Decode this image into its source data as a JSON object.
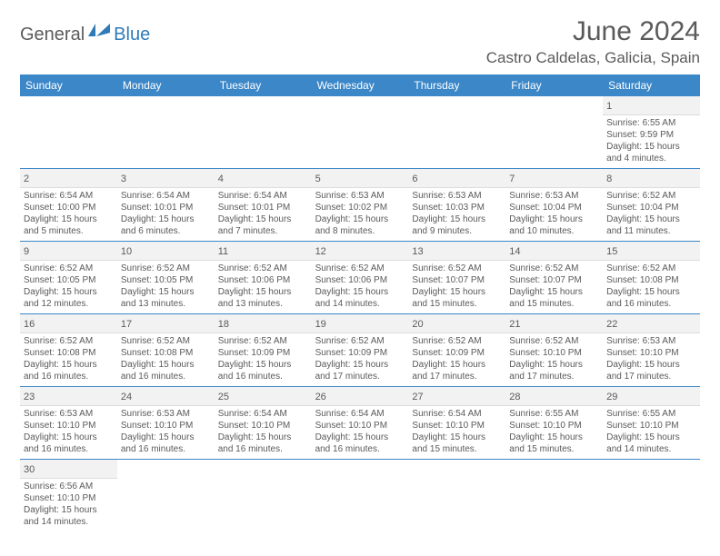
{
  "logo": {
    "part1": "General",
    "part2": "Blue"
  },
  "header": {
    "month_title": "June 2024",
    "location": "Castro Caldelas, Galicia, Spain"
  },
  "colors": {
    "header_bar": "#3b87c8",
    "header_text": "#ffffff",
    "body_text": "#5a5a5a",
    "daynum_bg": "#f2f2f2",
    "row_border": "#3b87c8",
    "logo_blue": "#2f7ab8"
  },
  "weekdays": [
    "Sunday",
    "Monday",
    "Tuesday",
    "Wednesday",
    "Thursday",
    "Friday",
    "Saturday"
  ],
  "weeks": [
    [
      null,
      null,
      null,
      null,
      null,
      null,
      {
        "n": "1",
        "sr": "6:55 AM",
        "ss": "9:59 PM",
        "dl": "15 hours and 4 minutes."
      }
    ],
    [
      {
        "n": "2",
        "sr": "6:54 AM",
        "ss": "10:00 PM",
        "dl": "15 hours and 5 minutes."
      },
      {
        "n": "3",
        "sr": "6:54 AM",
        "ss": "10:01 PM",
        "dl": "15 hours and 6 minutes."
      },
      {
        "n": "4",
        "sr": "6:54 AM",
        "ss": "10:01 PM",
        "dl": "15 hours and 7 minutes."
      },
      {
        "n": "5",
        "sr": "6:53 AM",
        "ss": "10:02 PM",
        "dl": "15 hours and 8 minutes."
      },
      {
        "n": "6",
        "sr": "6:53 AM",
        "ss": "10:03 PM",
        "dl": "15 hours and 9 minutes."
      },
      {
        "n": "7",
        "sr": "6:53 AM",
        "ss": "10:04 PM",
        "dl": "15 hours and 10 minutes."
      },
      {
        "n": "8",
        "sr": "6:52 AM",
        "ss": "10:04 PM",
        "dl": "15 hours and 11 minutes."
      }
    ],
    [
      {
        "n": "9",
        "sr": "6:52 AM",
        "ss": "10:05 PM",
        "dl": "15 hours and 12 minutes."
      },
      {
        "n": "10",
        "sr": "6:52 AM",
        "ss": "10:05 PM",
        "dl": "15 hours and 13 minutes."
      },
      {
        "n": "11",
        "sr": "6:52 AM",
        "ss": "10:06 PM",
        "dl": "15 hours and 13 minutes."
      },
      {
        "n": "12",
        "sr": "6:52 AM",
        "ss": "10:06 PM",
        "dl": "15 hours and 14 minutes."
      },
      {
        "n": "13",
        "sr": "6:52 AM",
        "ss": "10:07 PM",
        "dl": "15 hours and 15 minutes."
      },
      {
        "n": "14",
        "sr": "6:52 AM",
        "ss": "10:07 PM",
        "dl": "15 hours and 15 minutes."
      },
      {
        "n": "15",
        "sr": "6:52 AM",
        "ss": "10:08 PM",
        "dl": "15 hours and 16 minutes."
      }
    ],
    [
      {
        "n": "16",
        "sr": "6:52 AM",
        "ss": "10:08 PM",
        "dl": "15 hours and 16 minutes."
      },
      {
        "n": "17",
        "sr": "6:52 AM",
        "ss": "10:08 PM",
        "dl": "15 hours and 16 minutes."
      },
      {
        "n": "18",
        "sr": "6:52 AM",
        "ss": "10:09 PM",
        "dl": "15 hours and 16 minutes."
      },
      {
        "n": "19",
        "sr": "6:52 AM",
        "ss": "10:09 PM",
        "dl": "15 hours and 17 minutes."
      },
      {
        "n": "20",
        "sr": "6:52 AM",
        "ss": "10:09 PM",
        "dl": "15 hours and 17 minutes."
      },
      {
        "n": "21",
        "sr": "6:52 AM",
        "ss": "10:10 PM",
        "dl": "15 hours and 17 minutes."
      },
      {
        "n": "22",
        "sr": "6:53 AM",
        "ss": "10:10 PM",
        "dl": "15 hours and 17 minutes."
      }
    ],
    [
      {
        "n": "23",
        "sr": "6:53 AM",
        "ss": "10:10 PM",
        "dl": "15 hours and 16 minutes."
      },
      {
        "n": "24",
        "sr": "6:53 AM",
        "ss": "10:10 PM",
        "dl": "15 hours and 16 minutes."
      },
      {
        "n": "25",
        "sr": "6:54 AM",
        "ss": "10:10 PM",
        "dl": "15 hours and 16 minutes."
      },
      {
        "n": "26",
        "sr": "6:54 AM",
        "ss": "10:10 PM",
        "dl": "15 hours and 16 minutes."
      },
      {
        "n": "27",
        "sr": "6:54 AM",
        "ss": "10:10 PM",
        "dl": "15 hours and 15 minutes."
      },
      {
        "n": "28",
        "sr": "6:55 AM",
        "ss": "10:10 PM",
        "dl": "15 hours and 15 minutes."
      },
      {
        "n": "29",
        "sr": "6:55 AM",
        "ss": "10:10 PM",
        "dl": "15 hours and 14 minutes."
      }
    ],
    [
      {
        "n": "30",
        "sr": "6:56 AM",
        "ss": "10:10 PM",
        "dl": "15 hours and 14 minutes."
      },
      null,
      null,
      null,
      null,
      null,
      null
    ]
  ],
  "labels": {
    "sunrise": "Sunrise:",
    "sunset": "Sunset:",
    "daylight": "Daylight:"
  }
}
